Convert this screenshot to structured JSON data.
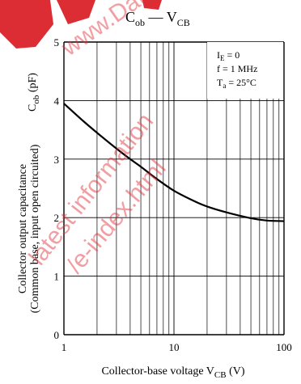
{
  "chart_data": {
    "type": "line",
    "title_main": "C",
    "title_main_sub": "ob",
    "title_dash": " — ",
    "title_right": "V",
    "title_right_sub": "CB",
    "xlabel_main": "Collector-base voltage  V",
    "xlabel_sub": "CB",
    "xlabel_unit": "  (V)",
    "ylabel_line1": "Collector output capacitance",
    "ylabel_line2": "(Common base, input open circuited)",
    "ylabel_short_main": "C",
    "ylabel_short_sub": "ob",
    "ylabel_short_unit": "  (pF)",
    "xscale": "log",
    "xlim": [
      1,
      100
    ],
    "ylim": [
      0,
      5
    ],
    "xticks": [
      {
        "v": 1,
        "label": "1"
      },
      {
        "v": 10,
        "label": "10"
      },
      {
        "v": 100,
        "label": "100"
      }
    ],
    "yticks": [
      {
        "v": 0,
        "label": "0"
      },
      {
        "v": 1,
        "label": "1"
      },
      {
        "v": 2,
        "label": "2"
      },
      {
        "v": 3,
        "label": "3"
      },
      {
        "v": 4,
        "label": "4"
      },
      {
        "v": 5,
        "label": "5"
      }
    ],
    "grid": true,
    "annotations": [
      {
        "main": "I",
        "sub": "E",
        "rest": " = 0"
      },
      {
        "main": "f = 1 MHz",
        "sub": "",
        "rest": ""
      },
      {
        "main": "T",
        "sub": "a",
        "rest": " = 25°C"
      }
    ],
    "series": [
      {
        "x": [
          1,
          1.5,
          2,
          3,
          4,
          5,
          7,
          10,
          15,
          20,
          30,
          50,
          70,
          100
        ],
        "y": [
          3.95,
          3.65,
          3.45,
          3.18,
          3.0,
          2.87,
          2.66,
          2.46,
          2.29,
          2.19,
          2.09,
          1.99,
          1.95,
          1.94
        ]
      }
    ]
  },
  "watermark": {
    "line1": "www.DataSheet4U.com",
    "line2": "Datasheet pdf - http://www.DataSheet4U.net/",
    "line3": "alldatasheet.com",
    "line4": "latest information",
    "line5": "/e-index.html"
  }
}
